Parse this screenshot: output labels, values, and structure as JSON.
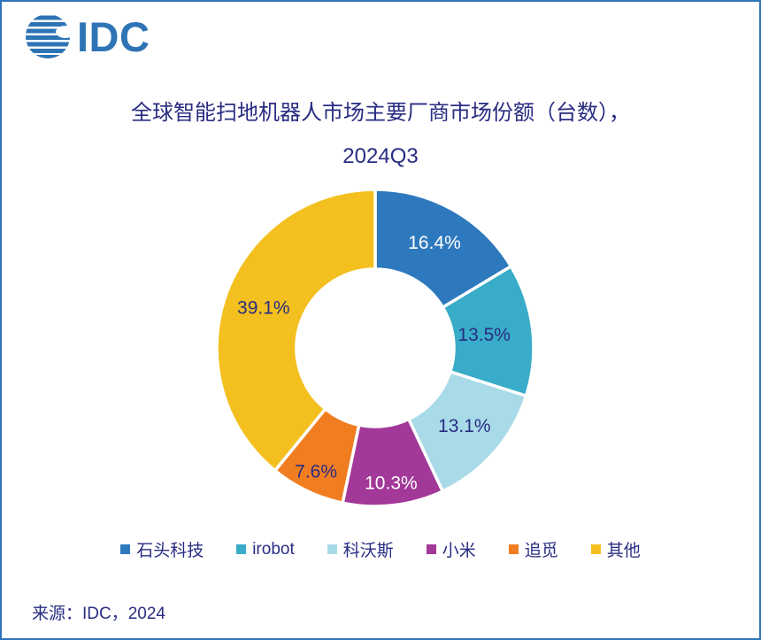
{
  "window": {
    "background": "#FFFFFF",
    "border_color": "#2E75B6"
  },
  "logo": {
    "text": "IDC",
    "color": "#2E74B5"
  },
  "title": {
    "line1": "全球智能扫地机器人市场主要厂商市场份额（台数），",
    "line2": "2024Q3",
    "color": "#292D82"
  },
  "chart_data": {
    "type": "pie",
    "subtype": "donut",
    "title": "全球智能扫地机器人市场主要厂商市场份额（台数），2024Q3",
    "unit": "%",
    "start_angle_deg": 0,
    "direction": "clockwise",
    "inner_radius_ratio": 0.5,
    "categories": [
      "石头科技",
      "irobot",
      "科沃斯",
      "小米",
      "追觅",
      "其他"
    ],
    "values": [
      16.4,
      13.5,
      13.1,
      10.3,
      7.6,
      39.1
    ],
    "labels": [
      "16.4%",
      "13.5%",
      "13.1%",
      "10.3%",
      "7.6%",
      "39.1%"
    ],
    "colors": [
      "#2E79BE",
      "#38ACC8",
      "#A9DAE8",
      "#A23898",
      "#F07E21",
      "#F3C01F"
    ],
    "label_colors": [
      "#FFFFFF",
      "#292D82",
      "#292D82",
      "#FFFFFF",
      "#292D82",
      "#292D82"
    ],
    "legend_position": "bottom"
  },
  "source": {
    "label": "来源：IDC，2024"
  }
}
